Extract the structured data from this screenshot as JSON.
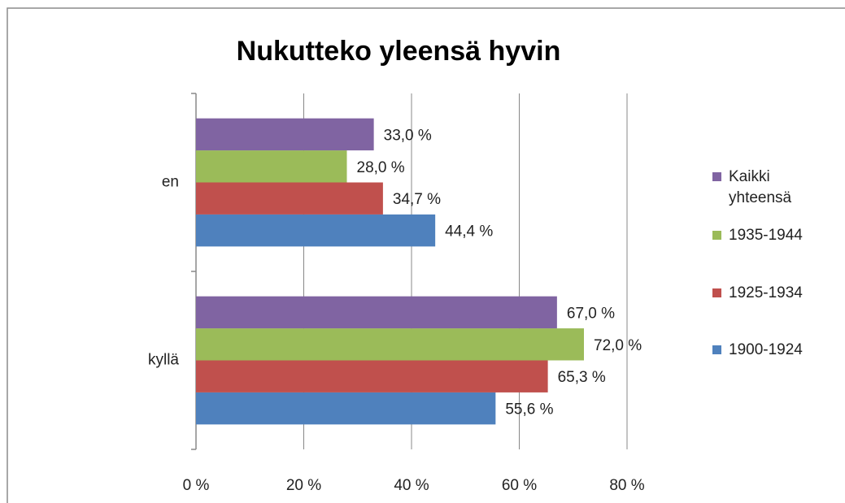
{
  "chart_data": {
    "type": "hbar",
    "title": "Nukutteko yleensä hyvin",
    "categories": [
      "en",
      "kyllä"
    ],
    "series": [
      {
        "name": "1900-1924",
        "color": "#4f81bd",
        "values": [
          44.4,
          55.6
        ],
        "value_labels": [
          "44,4 %",
          "55,6 %"
        ]
      },
      {
        "name": "1925-1934",
        "color": "#c0504d",
        "values": [
          34.7,
          65.3
        ],
        "value_labels": [
          "34,7 %",
          "65,3 %"
        ]
      },
      {
        "name": "1935-1944",
        "color": "#9bbb59",
        "values": [
          28.0,
          72.0
        ],
        "value_labels": [
          "28,0 %",
          "72,0 %"
        ]
      },
      {
        "name": "Kaikki yhteensä",
        "color": "#8064a2",
        "values": [
          33.0,
          67.0
        ],
        "value_labels": [
          "33,0 %",
          "67,0 %"
        ]
      }
    ],
    "xlim": [
      0,
      80
    ],
    "xticks": [
      {
        "value": 0,
        "label": "0 %"
      },
      {
        "value": 20,
        "label": "20 %"
      },
      {
        "value": 40,
        "label": "40 %"
      },
      {
        "value": 60,
        "label": "60 %"
      },
      {
        "value": 80,
        "label": "80 %"
      }
    ],
    "grid": true,
    "legend": "right"
  }
}
